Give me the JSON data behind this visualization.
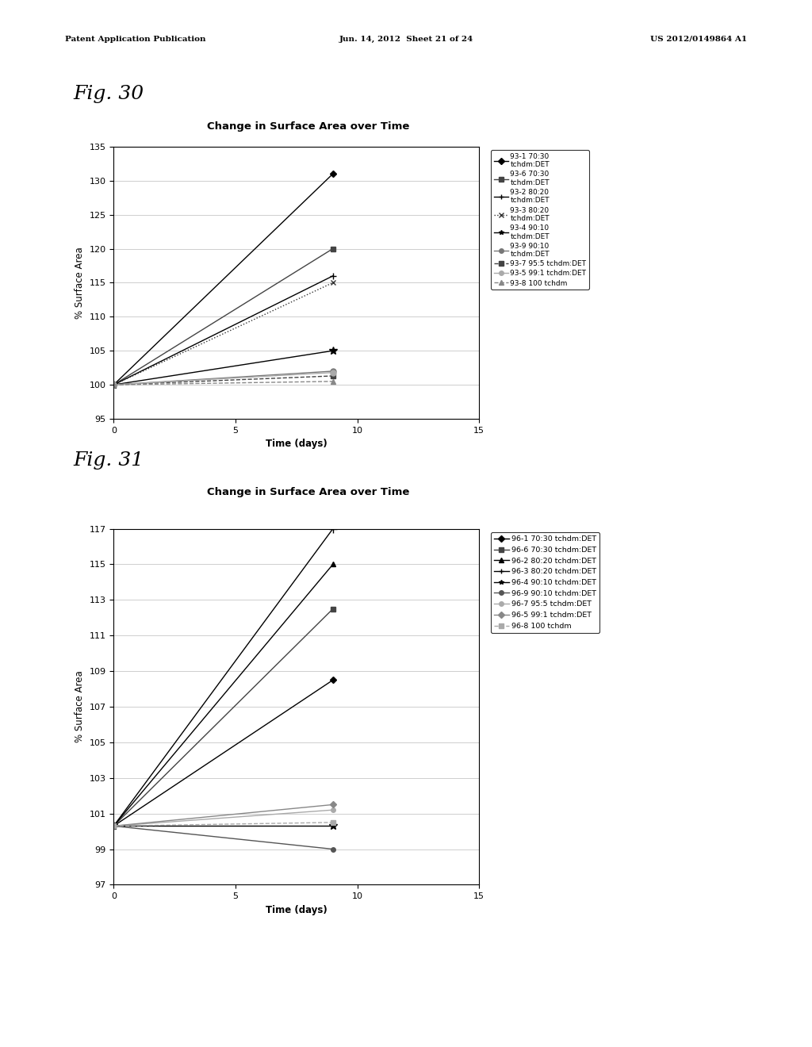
{
  "fig30": {
    "title": "Change in Surface Area over Time",
    "xlabel": "Time (days)",
    "ylabel": "% Surface Area",
    "xlim": [
      0,
      15
    ],
    "ylim": [
      95,
      135
    ],
    "yticks": [
      95,
      100,
      105,
      110,
      115,
      120,
      125,
      130,
      135
    ],
    "xticks": [
      0,
      5,
      10,
      15
    ],
    "series": [
      {
        "label": "93-1 70:30\ntchdm:DET",
        "x": [
          0,
          9
        ],
        "y": [
          100,
          131
        ],
        "marker": "D",
        "linestyle": "-",
        "color": "#000000",
        "markersize": 4,
        "lw": 1.0
      },
      {
        "label": "93-6 70:30\ntchdm:DET",
        "x": [
          0,
          9
        ],
        "y": [
          100,
          120
        ],
        "marker": "s",
        "linestyle": "-",
        "color": "#444444",
        "markersize": 4,
        "lw": 1.0
      },
      {
        "label": "93-2 80:20\ntchdm:DET",
        "x": [
          0,
          9
        ],
        "y": [
          100,
          116
        ],
        "marker": "+",
        "linestyle": "-",
        "color": "#000000",
        "markersize": 6,
        "lw": 1.0
      },
      {
        "label": "93-3 80:20\ntchdm:DET",
        "x": [
          0,
          9
        ],
        "y": [
          100,
          115
        ],
        "marker": "x",
        "linestyle": ":",
        "color": "#333333",
        "markersize": 5,
        "lw": 1.0
      },
      {
        "label": "93-4 90:10\ntchdm:DET",
        "x": [
          0,
          9
        ],
        "y": [
          100,
          105
        ],
        "marker": "*",
        "linestyle": "-",
        "color": "#000000",
        "markersize": 7,
        "lw": 1.0
      },
      {
        "label": "93-9 90:10\ntchdm:DET",
        "x": [
          0,
          9
        ],
        "y": [
          100,
          102
        ],
        "marker": "o",
        "linestyle": "-",
        "color": "#777777",
        "markersize": 5,
        "lw": 1.0
      },
      {
        "label": "93-7 95:5 tchdm:DET",
        "x": [
          0,
          9
        ],
        "y": [
          100,
          101.3
        ],
        "marker": "s",
        "linestyle": "--",
        "color": "#444444",
        "markersize": 4,
        "lw": 1.0
      },
      {
        "label": "93-5 99:1 tchdm:DET",
        "x": [
          0,
          9
        ],
        "y": [
          100,
          101.8
        ],
        "marker": "o",
        "linestyle": "-",
        "color": "#aaaaaa",
        "markersize": 5,
        "lw": 1.0
      },
      {
        "label": "93-8 100 tchdm",
        "x": [
          0,
          9
        ],
        "y": [
          100,
          100.5
        ],
        "marker": "^",
        "linestyle": "--",
        "color": "#888888",
        "markersize": 4,
        "lw": 1.0
      }
    ]
  },
  "fig31": {
    "title": "Change in Surface Area over Time",
    "xlabel": "Time (days)",
    "ylabel": "% Surface Area",
    "xlim": [
      0,
      15
    ],
    "ylim": [
      97,
      117
    ],
    "yticks": [
      97,
      99,
      101,
      103,
      105,
      107,
      109,
      111,
      113,
      115,
      117
    ],
    "xticks": [
      0,
      5,
      10,
      15
    ],
    "series": [
      {
        "label": "96-1 70:30 tchdm:DET",
        "x": [
          0,
          9
        ],
        "y": [
          100.3,
          108.5
        ],
        "marker": "D",
        "linestyle": "-",
        "color": "#000000",
        "markersize": 4,
        "lw": 1.0
      },
      {
        "label": "96-6 70:30 tchdm:DET",
        "x": [
          0,
          9
        ],
        "y": [
          100.3,
          112.5
        ],
        "marker": "s",
        "linestyle": "-",
        "color": "#444444",
        "markersize": 4,
        "lw": 1.0
      },
      {
        "label": "96-2 80:20 tchdm:DET",
        "x": [
          0,
          9
        ],
        "y": [
          100.3,
          115.0
        ],
        "marker": "^",
        "linestyle": "-",
        "color": "#000000",
        "markersize": 5,
        "lw": 1.0
      },
      {
        "label": "96-3 80:20 tchdm:DET",
        "x": [
          0,
          9
        ],
        "y": [
          100.3,
          117.0
        ],
        "marker": "+",
        "linestyle": "-",
        "color": "#000000",
        "markersize": 7,
        "lw": 1.0
      },
      {
        "label": "96-4 90:10 tchdm:DET",
        "x": [
          0,
          9
        ],
        "y": [
          100.3,
          100.3
        ],
        "marker": "*",
        "linestyle": "-",
        "color": "#000000",
        "markersize": 7,
        "lw": 1.0
      },
      {
        "label": "96-9 90:10 tchdm:DET",
        "x": [
          0,
          9
        ],
        "y": [
          100.3,
          99.0
        ],
        "marker": "o",
        "linestyle": "-",
        "color": "#555555",
        "markersize": 4,
        "lw": 1.0
      },
      {
        "label": "96-7 95:5 tchdm:DET",
        "x": [
          0,
          9
        ],
        "y": [
          100.3,
          101.2
        ],
        "marker": "o",
        "linestyle": "-",
        "color": "#aaaaaa",
        "markersize": 4,
        "lw": 1.0
      },
      {
        "label": "96-5 99:1 tchdm:DET",
        "x": [
          0,
          9
        ],
        "y": [
          100.3,
          101.5
        ],
        "marker": "D",
        "linestyle": "-",
        "color": "#888888",
        "markersize": 4,
        "lw": 1.0
      },
      {
        "label": "96-8 100 tchdm",
        "x": [
          0,
          9
        ],
        "y": [
          100.3,
          100.5
        ],
        "marker": "s",
        "linestyle": "--",
        "color": "#aaaaaa",
        "markersize": 4,
        "lw": 1.0
      }
    ]
  },
  "header_left": "Patent Application Publication",
  "header_center": "Jun. 14, 2012  Sheet 21 of 24",
  "header_right": "US 2012/0149864 A1",
  "fig30_label": "Fig. 30",
  "fig31_label": "Fig. 31",
  "bg_color": "#ffffff"
}
